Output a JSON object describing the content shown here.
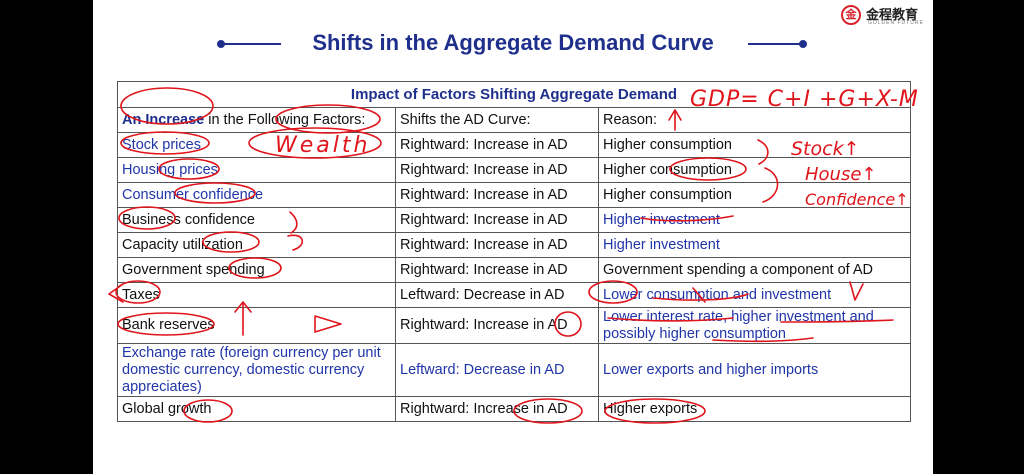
{
  "logo": {
    "badge": "金",
    "name": "金程教育",
    "subtitle": "GOLDEN FUTURE"
  },
  "title": "Shifts in the Aggregate Demand Curve",
  "table": {
    "caption": "Impact of Factors Shifting Aggregate Demand",
    "headers": {
      "factor_bold": "An Increase",
      "factor_rest": " in the Following Factors:",
      "shift": "Shifts the AD Curve:",
      "reason": "Reason:"
    },
    "rows": [
      {
        "factor": "Stock prices",
        "shift": "Rightward: Increase in AD",
        "reason": "Higher consumption"
      },
      {
        "factor": "Housing prices",
        "shift": "Rightward: Increase in AD",
        "reason": "Higher consumption"
      },
      {
        "factor": "Consumer confidence",
        "shift": "Rightward: Increase in AD",
        "reason": "Higher consumption"
      },
      {
        "factor": "Business confidence",
        "shift": "Rightward: Increase in AD",
        "reason": "Higher investment"
      },
      {
        "factor": "Capacity utilization",
        "shift": "Rightward: Increase in AD",
        "reason": "Higher investment"
      },
      {
        "factor": "Government spending",
        "shift": "Rightward: Increase in AD",
        "reason": "Government spending a component of AD"
      },
      {
        "factor": "Taxes",
        "shift": "Leftward: Decrease in AD",
        "reason": "Lower consumption and investment"
      },
      {
        "factor": "Bank reserves",
        "shift": "Rightward: Increase in AD",
        "reason": "Lower interest rate, higher investment and possibly higher consumption"
      },
      {
        "factor": "Exchange rate (foreign currency per unit domestic currency, domestic currency appreciates)",
        "shift": "Leftward: Decrease in AD",
        "reason": "Lower exports and higher imports"
      },
      {
        "factor": "Global growth",
        "shift": "Rightward: Increase in AD",
        "reason": "Higher exports"
      }
    ]
  },
  "annotations": {
    "equation": "GDP= C+I +G+X-M",
    "wealth": "Wealth",
    "stock": "Stock↑",
    "house": "House↑",
    "confidence": "Confidence↑"
  }
}
